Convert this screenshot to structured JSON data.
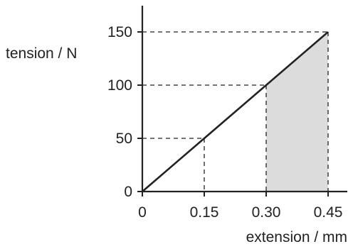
{
  "chart_data": {
    "type": "line",
    "title": "",
    "xlabel": "extension / mm",
    "ylabel": "tension / N",
    "x_ticks": [
      "0",
      "0.15",
      "0.30",
      "0.45"
    ],
    "y_ticks": [
      "0",
      "50",
      "100",
      "150"
    ],
    "xlim": [
      0,
      0.5
    ],
    "ylim": [
      0,
      180
    ],
    "grid": false,
    "series": [
      {
        "x": [
          0,
          0.15,
          0.3,
          0.45
        ],
        "y": [
          0,
          50,
          100,
          150
        ]
      }
    ],
    "reference_points": [
      {
        "x": 0.15,
        "y": 50
      },
      {
        "x": 0.3,
        "y": 100
      },
      {
        "x": 0.45,
        "y": 150
      }
    ],
    "shaded_region": {
      "x_from": 0.3,
      "x_to": 0.45,
      "color": "#dcdcdc"
    }
  }
}
